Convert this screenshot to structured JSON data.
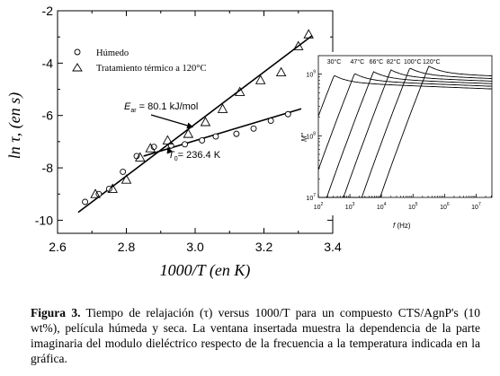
{
  "chart_data": [
    {
      "type": "scatter",
      "xlabel": "1000/T (en K)",
      "ylabel": "ln τ, (en s)",
      "xlim": [
        2.6,
        3.4
      ],
      "ylim": [
        -10.5,
        -2
      ],
      "x_ticks": [
        "2.6",
        "2.8",
        "3.0",
        "3.2",
        "3.4"
      ],
      "y_ticks": [
        "-2",
        "-4",
        "-6",
        "-8",
        "-10"
      ],
      "legend_position": "top-left",
      "series": [
        {
          "name": "Húmedo",
          "marker": "circle",
          "x": [
            2.68,
            2.72,
            2.75,
            2.79,
            2.83,
            2.88,
            2.93,
            2.97,
            3.02,
            3.06,
            3.12,
            3.17,
            3.22,
            3.27,
            3.33
          ],
          "y": [
            -9.3,
            -9.0,
            -8.8,
            -8.15,
            -7.55,
            -7.2,
            -7.15,
            -7.1,
            -6.95,
            -6.8,
            -6.7,
            -6.5,
            -6.2,
            -5.95,
            -5.65
          ]
        },
        {
          "name": "Tratamiento térmico a 120°C",
          "marker": "triangle",
          "x": [
            2.71,
            2.76,
            2.8,
            2.84,
            2.87,
            2.92,
            2.98,
            3.03,
            3.08,
            3.13,
            3.19,
            3.25,
            3.3,
            3.33
          ],
          "y": [
            -9.0,
            -8.8,
            -8.45,
            -7.6,
            -7.25,
            -6.95,
            -6.7,
            -6.25,
            -5.75,
            -5.1,
            -4.65,
            -4.35,
            -3.35,
            -2.9
          ]
        }
      ],
      "fit_lines": [
        {
          "x": [
            2.66,
            3.34
          ],
          "y": [
            -9.7,
            -2.95
          ]
        },
        {
          "x": [
            2.85,
            3.34
          ],
          "y": [
            -7.55,
            -5.62
          ]
        }
      ],
      "annotations": [
        {
          "text_main": "E",
          "text_sub": "ar",
          "text_rest": " = 80.1 kJ/mol",
          "arrow_to": [
            2.995,
            -6.45
          ]
        },
        {
          "text_main": "T",
          "text_sub": "0",
          "text_rest": "= 236.4 K",
          "arrow_to": [
            2.92,
            -7.2
          ]
        }
      ]
    },
    {
      "type": "line",
      "inset": true,
      "xlabel": "f (Hz)",
      "ylabel": "M''",
      "x_scale": "log",
      "y_scale": "log",
      "xlim_log10": [
        2,
        7.5
      ],
      "ylim_log10": [
        7,
        9.3
      ],
      "x_ticks": [
        "10",
        "10",
        "10",
        "10",
        "10",
        "10"
      ],
      "x_tick_exps": [
        "2",
        "3",
        "4",
        "5",
        "6",
        "7"
      ],
      "y_ticks": [
        "10",
        "10",
        "10"
      ],
      "y_tick_exps": [
        "7",
        "8",
        "9"
      ],
      "series_labels": [
        "30°C",
        "47°C",
        "66°C",
        "82°C",
        "100°C",
        "120°C"
      ],
      "curves": [
        {
          "peak_log10f": 2.5,
          "plateau_log10": 8.9
        },
        {
          "peak_log10f": 3.15,
          "plateau_log10": 8.93
        },
        {
          "peak_log10f": 3.75,
          "plateau_log10": 8.96
        },
        {
          "peak_log10f": 4.3,
          "plateau_log10": 8.99
        },
        {
          "peak_log10f": 4.9,
          "plateau_log10": 9.02
        },
        {
          "peak_log10f": 5.5,
          "plateau_log10": 9.05
        }
      ]
    }
  ],
  "caption": {
    "label": "Figura 3.",
    "text": " Tiempo de relajación (τ) versus 1000/T para un compuesto CTS/AgnP's (10 wt%), película húmeda y seca. La ventana insertada muestra la dependencia de la parte imaginaria del modulo dieléctrico respecto de la frecuencia a la temperatura indicada en la gráfica."
  }
}
